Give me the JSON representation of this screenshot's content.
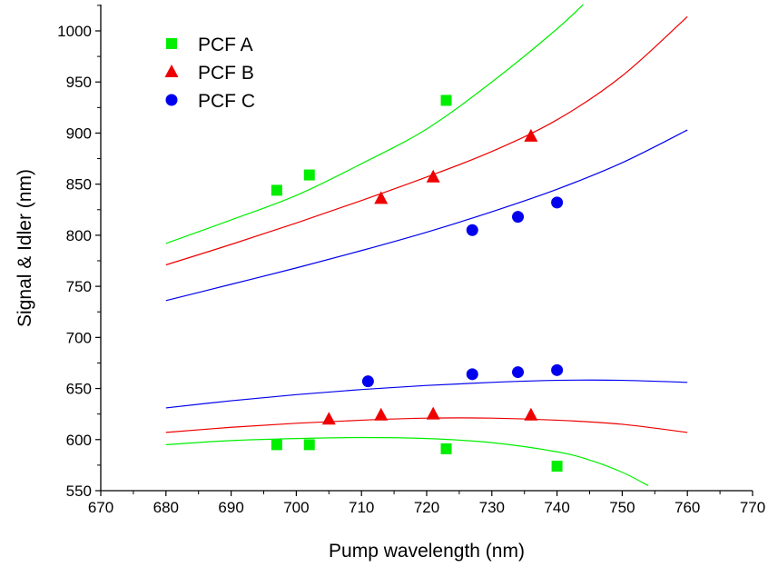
{
  "chart_data": {
    "type": "scatter",
    "xlabel": "Pump wavelength (nm)",
    "ylabel": "Signal & Idler (nm)",
    "xlim": [
      670,
      770
    ],
    "ylim": [
      550,
      1025
    ],
    "xticks": [
      670,
      680,
      690,
      700,
      710,
      720,
      730,
      740,
      750,
      760,
      770
    ],
    "yticks": [
      550,
      600,
      650,
      700,
      750,
      800,
      850,
      900,
      950,
      1000
    ],
    "grid": false,
    "legend_position": "top-left",
    "series": [
      {
        "name": "PCF A",
        "color": "#00ee00",
        "marker": "square",
        "points": [
          [
            697,
            844
          ],
          [
            702,
            859
          ],
          [
            723,
            932
          ],
          [
            697,
            595
          ],
          [
            702,
            595
          ],
          [
            723,
            591
          ],
          [
            740,
            574
          ]
        ],
        "fit_upper": [
          [
            680,
            792
          ],
          [
            690,
            815
          ],
          [
            700,
            839
          ],
          [
            710,
            870
          ],
          [
            720,
            904
          ],
          [
            730,
            950
          ],
          [
            740,
            1002
          ],
          [
            745,
            1032
          ]
        ],
        "fit_lower": [
          [
            680,
            595
          ],
          [
            690,
            599
          ],
          [
            700,
            601
          ],
          [
            710,
            602
          ],
          [
            720,
            601
          ],
          [
            730,
            597
          ],
          [
            740,
            588
          ],
          [
            745,
            580
          ],
          [
            750,
            568
          ],
          [
            754,
            555
          ]
        ]
      },
      {
        "name": "PCF B",
        "color": "#ee0000",
        "marker": "triangle",
        "points": [
          [
            713,
            836
          ],
          [
            721,
            857
          ],
          [
            736,
            897
          ],
          [
            705,
            620
          ],
          [
            713,
            624
          ],
          [
            721,
            625
          ],
          [
            736,
            624
          ]
        ],
        "fit_upper": [
          [
            680,
            771
          ],
          [
            690,
            791
          ],
          [
            700,
            812
          ],
          [
            710,
            834
          ],
          [
            720,
            857
          ],
          [
            730,
            882
          ],
          [
            740,
            913
          ],
          [
            750,
            956
          ],
          [
            760,
            1014
          ]
        ],
        "fit_lower": [
          [
            680,
            607
          ],
          [
            690,
            612
          ],
          [
            700,
            616
          ],
          [
            710,
            619
          ],
          [
            720,
            621
          ],
          [
            730,
            621
          ],
          [
            740,
            619
          ],
          [
            750,
            615
          ],
          [
            760,
            607
          ]
        ]
      },
      {
        "name": "PCF C",
        "color": "#0000ee",
        "marker": "circle",
        "points": [
          [
            727,
            805
          ],
          [
            734,
            818
          ],
          [
            740,
            832
          ],
          [
            711,
            657
          ],
          [
            727,
            664
          ],
          [
            734,
            666
          ],
          [
            740,
            668
          ]
        ],
        "fit_upper": [
          [
            680,
            736
          ],
          [
            690,
            752
          ],
          [
            700,
            768
          ],
          [
            710,
            785
          ],
          [
            720,
            803
          ],
          [
            730,
            823
          ],
          [
            740,
            845
          ],
          [
            750,
            871
          ],
          [
            760,
            903
          ]
        ],
        "fit_lower": [
          [
            680,
            631
          ],
          [
            690,
            638
          ],
          [
            700,
            644
          ],
          [
            710,
            649
          ],
          [
            720,
            653
          ],
          [
            730,
            656
          ],
          [
            740,
            658
          ],
          [
            750,
            658
          ],
          [
            760,
            656
          ]
        ]
      }
    ]
  }
}
